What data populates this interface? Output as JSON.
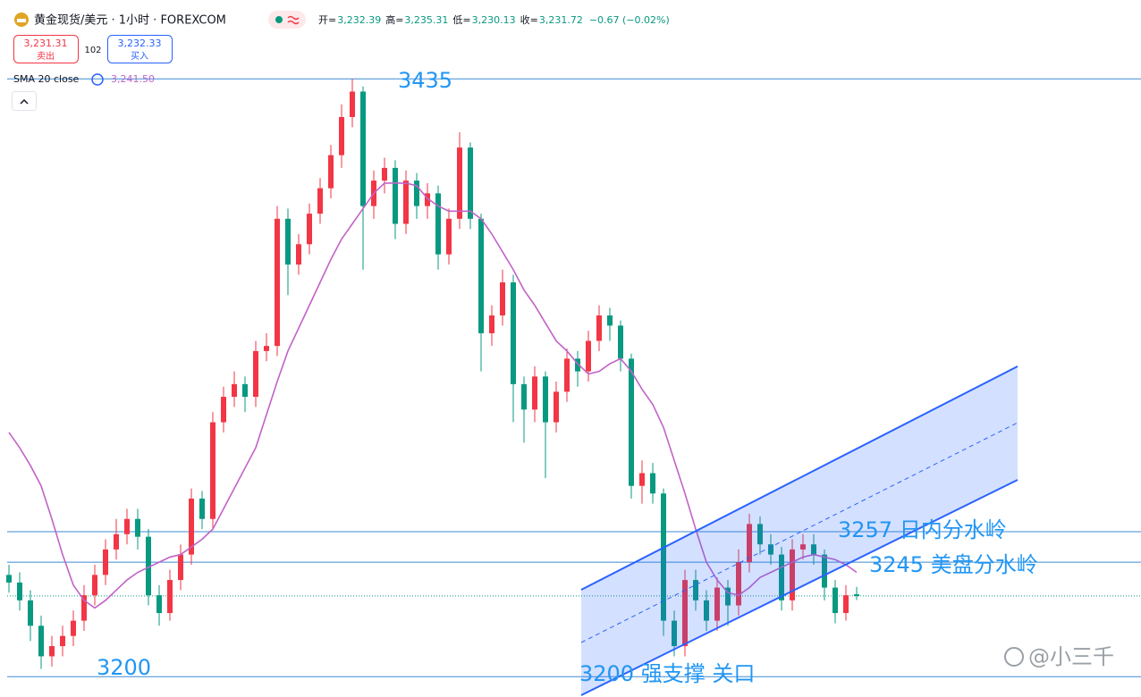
{
  "header": {
    "title": "黄金现货/美元 · 1小时 · FOREXCOM",
    "ohlc": [
      {
        "label": "开=",
        "value": "3,232.39"
      },
      {
        "label": "高=",
        "value": "3,235.31"
      },
      {
        "label": "低=",
        "value": "3,230.13"
      },
      {
        "label": "收=",
        "value": "3,231.72"
      }
    ],
    "change": "−0.67 (−0.02%)",
    "sell_price": "3,231.31",
    "sell_label": "卖出",
    "spread": "102",
    "buy_price": "3,232.33",
    "buy_label": "买入",
    "indicator_name": "SMA 20 close",
    "indicator_value": "3,241.50"
  },
  "chart_data": {
    "type": "candlestick",
    "up_color": "#f23645",
    "down_color": "#089981",
    "ylim": [
      3192,
      3466
    ],
    "xlim": [
      -0.5,
      79.5
    ],
    "open": [
      3240,
      3237,
      3230,
      3220,
      3208,
      3212,
      3216,
      3222,
      3232,
      3240,
      3250,
      3256,
      3262,
      3255,
      3232,
      3225,
      3238,
      3248,
      3270,
      3262,
      3300,
      3310,
      3315,
      3310,
      3328,
      3330,
      3380,
      3362,
      3370,
      3382,
      3392,
      3405,
      3420,
      3430,
      3385,
      3395,
      3400,
      3378,
      3395,
      3385,
      3390,
      3366,
      3380,
      3408,
      3380,
      3335,
      3342,
      3355,
      3315,
      3305,
      3318,
      3300,
      3312,
      3325,
      3320,
      3332,
      3342,
      3338,
      3325,
      3275,
      3280,
      3272,
      3222,
      3212,
      3238,
      3230,
      3222,
      3235,
      3228,
      3245,
      3260,
      3252,
      3248,
      3230,
      3250,
      3252,
      3248,
      3235,
      3225,
      3232.39
    ],
    "high": [
      3244,
      3241,
      3234,
      3224,
      3216,
      3220,
      3226,
      3236,
      3244,
      3254,
      3262,
      3266,
      3266,
      3258,
      3236,
      3242,
      3252,
      3274,
      3273,
      3304,
      3314,
      3320,
      3318,
      3332,
      3335,
      3385,
      3384,
      3374,
      3386,
      3396,
      3409,
      3425,
      3435,
      3432,
      3399,
      3404,
      3403,
      3399,
      3398,
      3394,
      3393,
      3384,
      3414,
      3410,
      3382,
      3346,
      3360,
      3358,
      3318,
      3322,
      3320,
      3316,
      3329,
      3328,
      3336,
      3346,
      3345,
      3340,
      3327,
      3285,
      3284,
      3274,
      3226,
      3242,
      3242,
      3234,
      3239,
      3238,
      3250,
      3264,
      3263,
      3256,
      3251,
      3254,
      3256,
      3256,
      3250,
      3238,
      3236,
      3235.31
    ],
    "low": [
      3233,
      3226,
      3214,
      3203,
      3204,
      3208,
      3212,
      3218,
      3228,
      3236,
      3246,
      3252,
      3250,
      3228,
      3220,
      3222,
      3234,
      3244,
      3258,
      3258,
      3296,
      3306,
      3304,
      3306,
      3324,
      3326,
      3350,
      3358,
      3366,
      3378,
      3388,
      3400,
      3416,
      3360,
      3380,
      3390,
      3372,
      3374,
      3380,
      3380,
      3360,
      3362,
      3376,
      3376,
      3320,
      3330,
      3338,
      3300,
      3292,
      3300,
      3278,
      3296,
      3308,
      3314,
      3316,
      3328,
      3332,
      3320,
      3270,
      3268,
      3268,
      3216,
      3208,
      3208,
      3226,
      3218,
      3218,
      3220,
      3224,
      3241,
      3248,
      3244,
      3226,
      3226,
      3246,
      3244,
      3230,
      3221,
      3222,
      3230.13
    ],
    "close": [
      3237,
      3230,
      3220,
      3208,
      3212,
      3216,
      3222,
      3232,
      3240,
      3250,
      3256,
      3262,
      3255,
      3232,
      3225,
      3238,
      3248,
      3270,
      3262,
      3300,
      3310,
      3315,
      3310,
      3328,
      3330,
      3380,
      3362,
      3370,
      3382,
      3392,
      3405,
      3420,
      3430,
      3385,
      3395,
      3400,
      3378,
      3395,
      3385,
      3390,
      3366,
      3380,
      3408,
      3380,
      3335,
      3342,
      3355,
      3315,
      3305,
      3318,
      3300,
      3312,
      3325,
      3320,
      3332,
      3342,
      3338,
      3325,
      3275,
      3280,
      3272,
      3222,
      3212,
      3238,
      3230,
      3222,
      3235,
      3228,
      3245,
      3260,
      3252,
      3248,
      3230,
      3250,
      3252,
      3248,
      3235,
      3225,
      3232,
      3231.72
    ],
    "series": [
      {
        "name": "SMA 20 close",
        "color": "#c163c7",
        "values": [
          3296,
          3290,
          3283,
          3275,
          3262,
          3248,
          3236,
          3230,
          3227,
          3230,
          3234,
          3238,
          3241,
          3243,
          3245,
          3247,
          3248,
          3251,
          3254,
          3258,
          3266,
          3274,
          3282,
          3290,
          3303,
          3316,
          3328,
          3337,
          3346,
          3355,
          3364,
          3372,
          3378,
          3384,
          3390,
          3394,
          3394,
          3394,
          3393,
          3388,
          3385,
          3383,
          3383,
          3383,
          3380,
          3374,
          3367,
          3360,
          3352,
          3346,
          3339,
          3332,
          3328,
          3323,
          3319,
          3320,
          3323,
          3325,
          3320,
          3313,
          3307,
          3298,
          3285,
          3272,
          3258,
          3245,
          3238,
          3233,
          3232,
          3235,
          3239,
          3241,
          3243,
          3245,
          3247,
          3248,
          3247,
          3246,
          3244,
          3241
        ]
      }
    ],
    "levels": [
      {
        "value": 3435,
        "label": "3435"
      },
      {
        "value": 3257,
        "label": "3257 日内分水岭"
      },
      {
        "value": 3245,
        "label": "3245 美盘分水岭"
      },
      {
        "value": 3200,
        "label": "3200"
      }
    ],
    "annotations": [
      "3200 强支撑 关口"
    ],
    "watermark": "@小三千"
  }
}
